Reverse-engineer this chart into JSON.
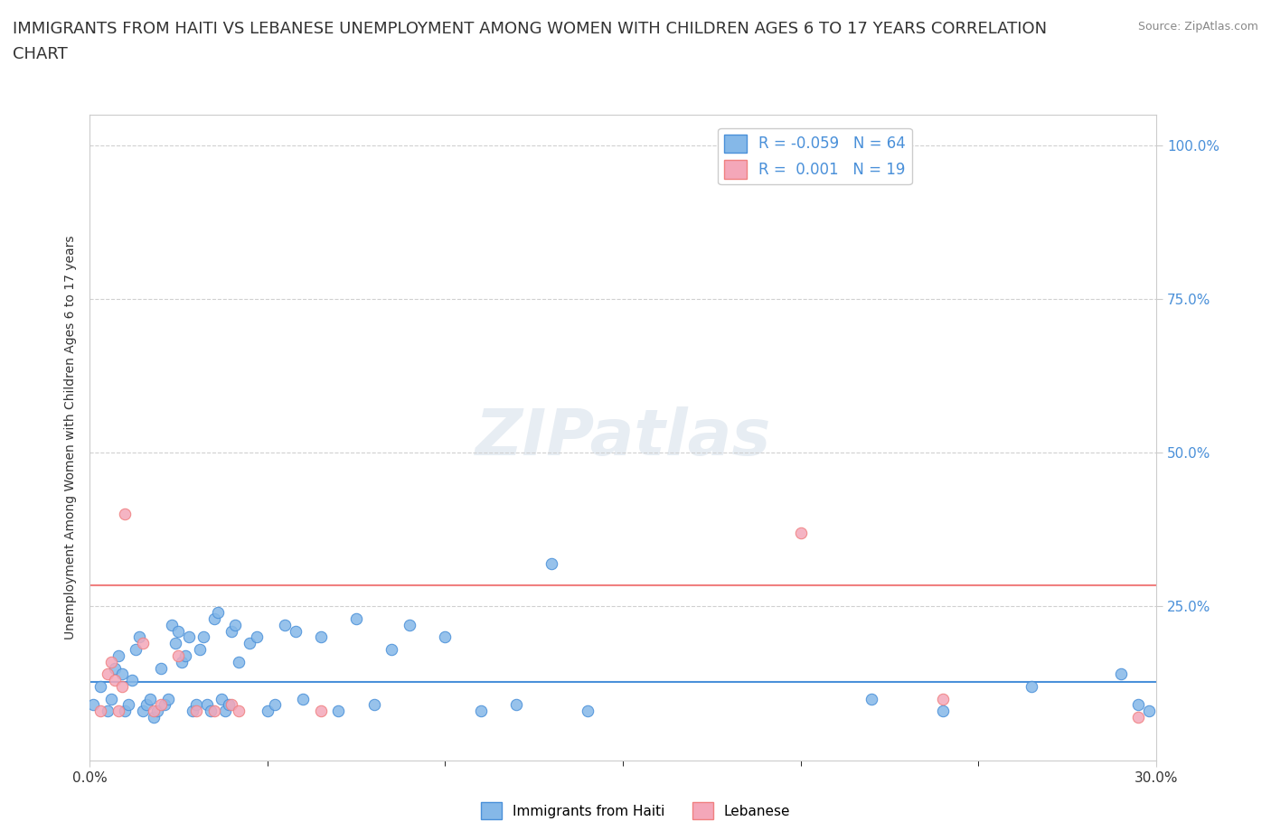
{
  "title_line1": "IMMIGRANTS FROM HAITI VS LEBANESE UNEMPLOYMENT AMONG WOMEN WITH CHILDREN AGES 6 TO 17 YEARS CORRELATION",
  "title_line2": "CHART",
  "source": "Source: ZipAtlas.com",
  "ylabel": "Unemployment Among Women with Children Ages 6 to 17 years",
  "xlim": [
    0.0,
    0.3
  ],
  "ylim": [
    0.0,
    1.05
  ],
  "ytick_labels": [
    "25.0%",
    "50.0%",
    "75.0%",
    "100.0%"
  ],
  "ytick_values": [
    0.25,
    0.5,
    0.75,
    1.0
  ],
  "legend_r_haiti": "-0.059",
  "legend_n_haiti": "64",
  "legend_r_lebanese": "0.001",
  "legend_n_lebanese": "19",
  "haiti_color": "#85b8e8",
  "lebanese_color": "#f4a7b9",
  "haiti_line_color": "#4a90d9",
  "lebanese_line_color": "#f08080",
  "background_color": "#ffffff",
  "watermark": "ZIPatlas",
  "haiti_points": [
    [
      0.001,
      0.09
    ],
    [
      0.003,
      0.12
    ],
    [
      0.005,
      0.08
    ],
    [
      0.006,
      0.1
    ],
    [
      0.007,
      0.15
    ],
    [
      0.008,
      0.17
    ],
    [
      0.009,
      0.14
    ],
    [
      0.01,
      0.08
    ],
    [
      0.011,
      0.09
    ],
    [
      0.012,
      0.13
    ],
    [
      0.013,
      0.18
    ],
    [
      0.014,
      0.2
    ],
    [
      0.015,
      0.08
    ],
    [
      0.016,
      0.09
    ],
    [
      0.017,
      0.1
    ],
    [
      0.018,
      0.07
    ],
    [
      0.019,
      0.08
    ],
    [
      0.02,
      0.15
    ],
    [
      0.021,
      0.09
    ],
    [
      0.022,
      0.1
    ],
    [
      0.023,
      0.22
    ],
    [
      0.024,
      0.19
    ],
    [
      0.025,
      0.21
    ],
    [
      0.026,
      0.16
    ],
    [
      0.027,
      0.17
    ],
    [
      0.028,
      0.2
    ],
    [
      0.029,
      0.08
    ],
    [
      0.03,
      0.09
    ],
    [
      0.031,
      0.18
    ],
    [
      0.032,
      0.2
    ],
    [
      0.033,
      0.09
    ],
    [
      0.034,
      0.08
    ],
    [
      0.035,
      0.23
    ],
    [
      0.036,
      0.24
    ],
    [
      0.037,
      0.1
    ],
    [
      0.038,
      0.08
    ],
    [
      0.039,
      0.09
    ],
    [
      0.04,
      0.21
    ],
    [
      0.041,
      0.22
    ],
    [
      0.042,
      0.16
    ],
    [
      0.045,
      0.19
    ],
    [
      0.047,
      0.2
    ],
    [
      0.05,
      0.08
    ],
    [
      0.052,
      0.09
    ],
    [
      0.055,
      0.22
    ],
    [
      0.058,
      0.21
    ],
    [
      0.06,
      0.1
    ],
    [
      0.065,
      0.2
    ],
    [
      0.07,
      0.08
    ],
    [
      0.075,
      0.23
    ],
    [
      0.08,
      0.09
    ],
    [
      0.085,
      0.18
    ],
    [
      0.09,
      0.22
    ],
    [
      0.1,
      0.2
    ],
    [
      0.11,
      0.08
    ],
    [
      0.12,
      0.09
    ],
    [
      0.13,
      0.32
    ],
    [
      0.14,
      0.08
    ],
    [
      0.22,
      0.1
    ],
    [
      0.24,
      0.08
    ],
    [
      0.265,
      0.12
    ],
    [
      0.29,
      0.14
    ],
    [
      0.295,
      0.09
    ],
    [
      0.298,
      0.08
    ]
  ],
  "lebanese_points": [
    [
      0.003,
      0.08
    ],
    [
      0.005,
      0.14
    ],
    [
      0.006,
      0.16
    ],
    [
      0.007,
      0.13
    ],
    [
      0.008,
      0.08
    ],
    [
      0.009,
      0.12
    ],
    [
      0.01,
      0.4
    ],
    [
      0.015,
      0.19
    ],
    [
      0.018,
      0.08
    ],
    [
      0.02,
      0.09
    ],
    [
      0.025,
      0.17
    ],
    [
      0.03,
      0.08
    ],
    [
      0.035,
      0.08
    ],
    [
      0.04,
      0.09
    ],
    [
      0.042,
      0.08
    ],
    [
      0.065,
      0.08
    ],
    [
      0.2,
      0.37
    ],
    [
      0.24,
      0.1
    ],
    [
      0.295,
      0.07
    ]
  ],
  "haiti_hline_y": 0.127,
  "lebanese_hline_y": 0.285,
  "grid_color": "#d0d0d0",
  "title_fontsize": 13,
  "axis_fontsize": 10
}
